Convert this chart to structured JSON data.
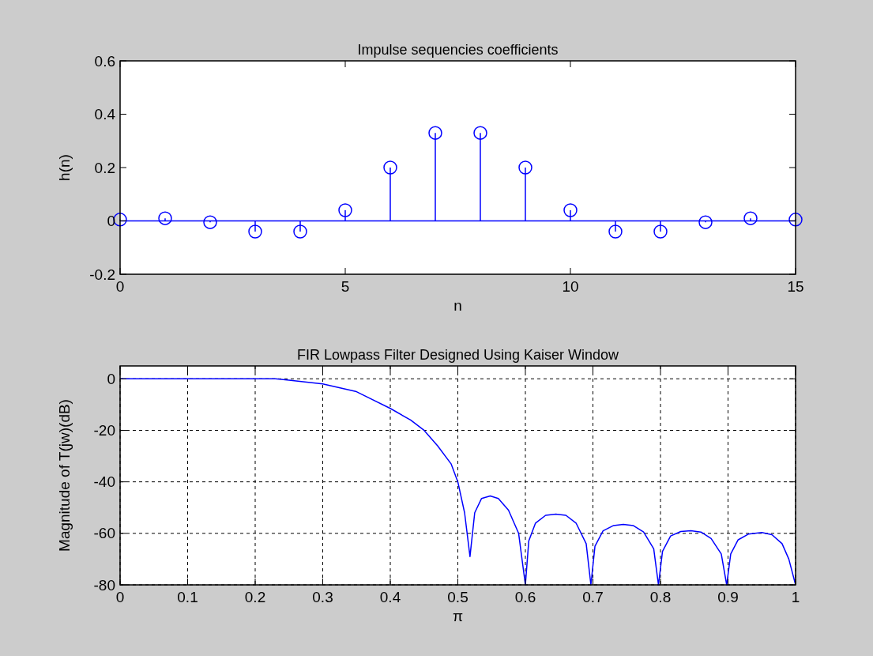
{
  "chart_data": [
    {
      "type": "lollipop",
      "title": "Impulse sequencies coefficients",
      "xlabel": "n",
      "ylabel": "h(n)",
      "x": [
        0,
        1,
        2,
        3,
        4,
        5,
        6,
        7,
        8,
        9,
        10,
        11,
        12,
        13,
        14,
        15
      ],
      "values": [
        0.005,
        0.01,
        -0.005,
        -0.04,
        -0.04,
        0.04,
        0.2,
        0.33,
        0.33,
        0.2,
        0.04,
        -0.04,
        -0.04,
        -0.005,
        0.01,
        0.005
      ],
      "color": "#0000ff",
      "marker": "circle",
      "ref_lines": [
        {
          "axis": "y",
          "value": 0,
          "color": "#0000ff"
        }
      ],
      "xlim": [
        0,
        15
      ],
      "xticks": [
        0,
        5,
        10,
        15
      ],
      "ylim": [
        -0.2,
        0.6
      ],
      "yticks": [
        -0.2,
        0,
        0.2,
        0.4,
        0.6
      ]
    },
    {
      "type": "line",
      "title": "FIR Lowpass Filter Designed Using Kaiser Window",
      "xlabel": "π",
      "ylabel": "Magnitude of T(jw)(dB)",
      "x": [
        0,
        0.1,
        0.2,
        0.23,
        0.25,
        0.3,
        0.35,
        0.4,
        0.43,
        0.45,
        0.47,
        0.49,
        0.5,
        0.51,
        0.518,
        0.525,
        0.535,
        0.548,
        0.56,
        0.575,
        0.59,
        0.6,
        0.605,
        0.615,
        0.63,
        0.645,
        0.66,
        0.675,
        0.69,
        0.697,
        0.703,
        0.715,
        0.73,
        0.745,
        0.76,
        0.775,
        0.79,
        0.797,
        0.803,
        0.815,
        0.83,
        0.845,
        0.86,
        0.875,
        0.89,
        0.898,
        0.904,
        0.915,
        0.93,
        0.95,
        0.965,
        0.98,
        0.99,
        1
      ],
      "values": [
        0,
        0,
        0,
        0,
        -0.5,
        -2,
        -5,
        -11.5,
        -16,
        -20,
        -26,
        -33,
        -40,
        -52,
        -69,
        -52,
        -46.5,
        -45.5,
        -46.5,
        -51,
        -60,
        -80,
        -63,
        -56,
        -53,
        -52.5,
        -53,
        -56,
        -64,
        -80,
        -65,
        -59,
        -57,
        -56.5,
        -57,
        -59.5,
        -66,
        -80,
        -67,
        -61,
        -59.3,
        -59,
        -59.5,
        -62,
        -68,
        -80,
        -68,
        -62.5,
        -60.3,
        -59.7,
        -60.5,
        -64,
        -70,
        -80
      ],
      "color": "#0000ff",
      "xlim": [
        0,
        1
      ],
      "xticks": [
        0,
        0.1,
        0.2,
        0.3,
        0.4,
        0.5,
        0.6,
        0.7,
        0.8,
        0.9,
        1
      ],
      "ylim": [
        -80,
        5
      ],
      "yticks": [
        -80,
        -60,
        -40,
        -20,
        0
      ],
      "grid": true
    }
  ]
}
